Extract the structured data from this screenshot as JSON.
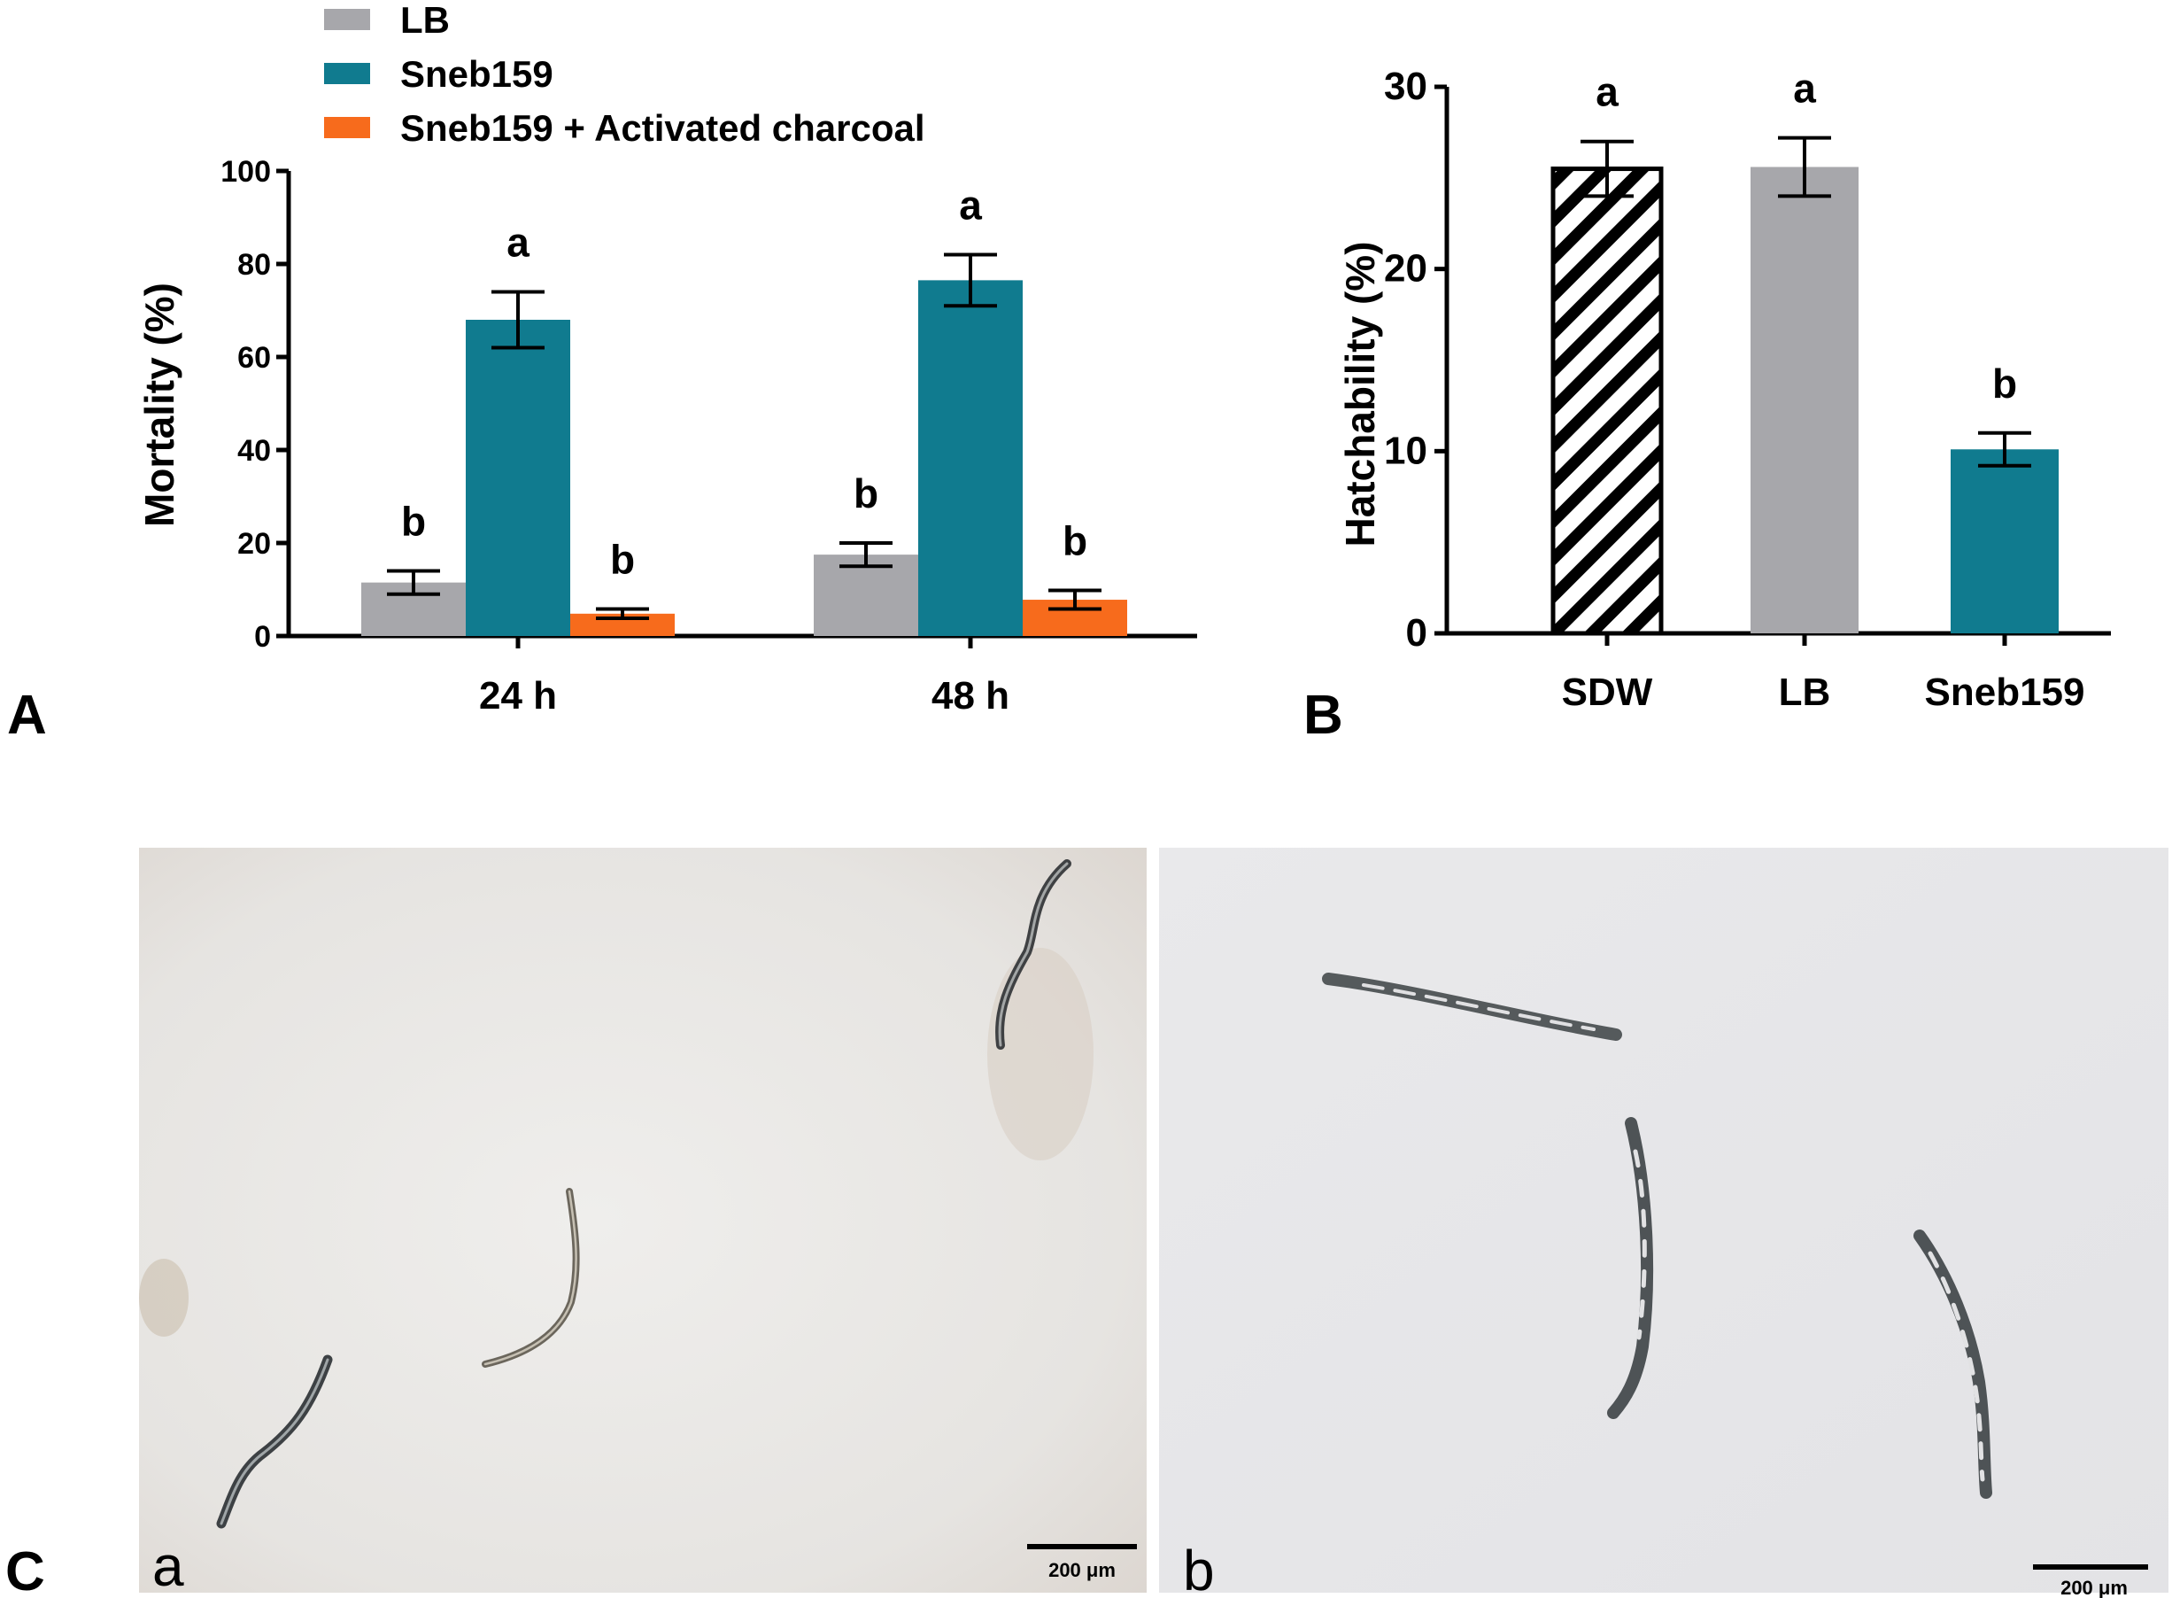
{
  "panel_labels": {
    "a": "A",
    "b": "B",
    "c": "C"
  },
  "chart_data": [
    {
      "type": "bar",
      "panel": "A",
      "title": "",
      "ylabel": "Mortality (%)",
      "xlabel": "",
      "ylim": [
        0,
        100
      ],
      "yticks": [
        0,
        20,
        40,
        60,
        80,
        100
      ],
      "categories": [
        "24 h",
        "48 h"
      ],
      "legend_position": "top-left",
      "series": [
        {
          "name": "LB",
          "color": "#a7a7ab",
          "values": [
            11.5,
            17.5
          ],
          "errors": [
            2.5,
            2.5
          ],
          "labels": [
            "b",
            "b"
          ]
        },
        {
          "name": "Sneb159",
          "color": "#107b8f",
          "values": [
            68,
            76.5
          ],
          "errors": [
            6,
            5.5
          ],
          "labels": [
            "a",
            "a"
          ]
        },
        {
          "name": "Sneb159 + Activated charcoal",
          "color": "#f76b1c",
          "values": [
            4.8,
            7.8
          ],
          "errors": [
            1,
            2
          ],
          "labels": [
            "b",
            "b"
          ]
        }
      ]
    },
    {
      "type": "bar",
      "panel": "B",
      "title": "",
      "ylabel": "Hatchability (%)",
      "xlabel": "",
      "ylim": [
        0,
        30
      ],
      "yticks": [
        0,
        10,
        20,
        30
      ],
      "categories": [
        "SDW",
        "LB",
        "Sneb159"
      ],
      "values": [
        25.5,
        25.6,
        10.1
      ],
      "errors": [
        1.5,
        1.6,
        0.9
      ],
      "labels": [
        "a",
        "a",
        "b"
      ],
      "colors": [
        "hatched",
        "#a7a7ab",
        "#107b8f"
      ]
    }
  ],
  "photos": [
    {
      "sub_label": "a",
      "scale": "200 μm"
    },
    {
      "sub_label": "b",
      "scale": "200 μm"
    }
  ]
}
